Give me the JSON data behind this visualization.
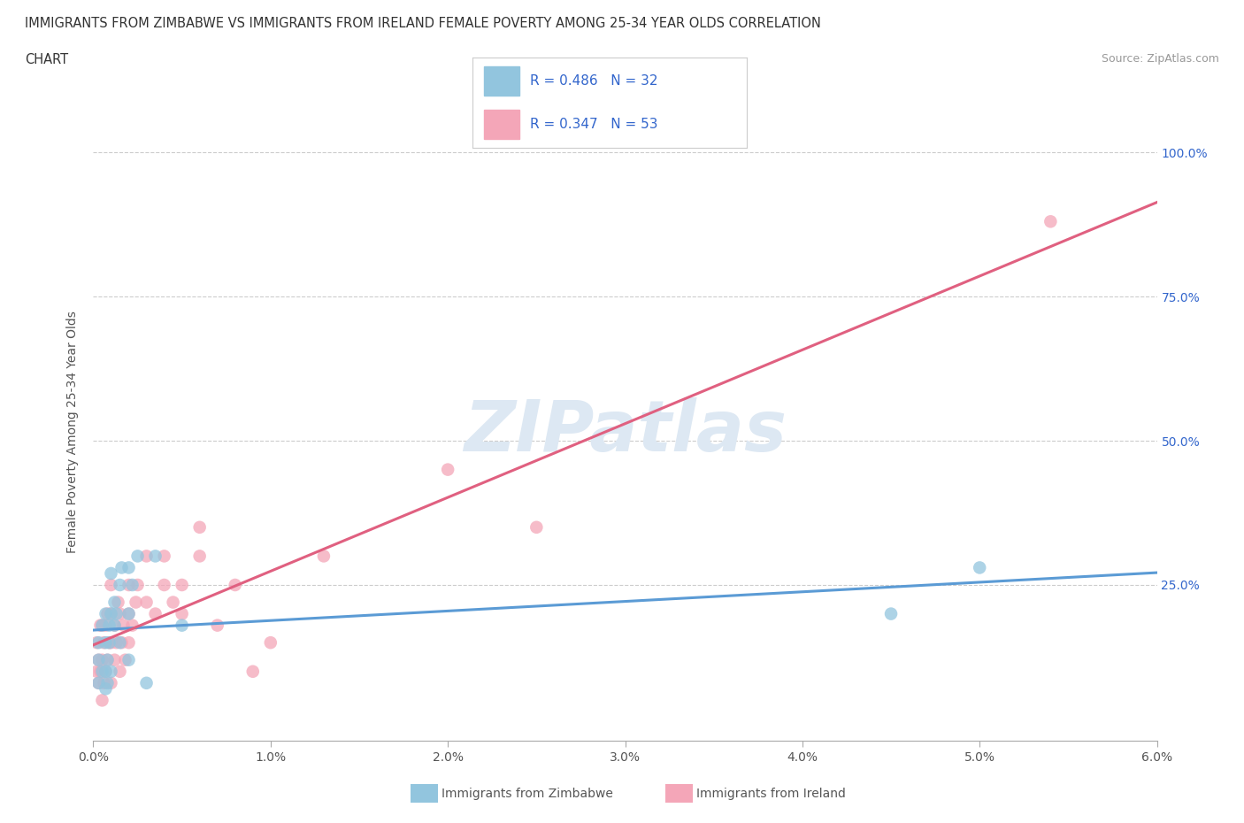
{
  "title_line1": "IMMIGRANTS FROM ZIMBABWE VS IMMIGRANTS FROM IRELAND FEMALE POVERTY AMONG 25-34 YEAR OLDS CORRELATION",
  "title_line2": "CHART",
  "source_text": "Source: ZipAtlas.com",
  "ylabel": "Female Poverty Among 25-34 Year Olds",
  "xlim": [
    0.0,
    0.06
  ],
  "ylim": [
    -0.02,
    1.05
  ],
  "xticks": [
    0.0,
    0.01,
    0.02,
    0.03,
    0.04,
    0.05,
    0.06
  ],
  "xticklabels": [
    "0.0%",
    "1.0%",
    "2.0%",
    "3.0%",
    "4.0%",
    "5.0%",
    "6.0%"
  ],
  "ytick_positions": [
    0.25,
    0.5,
    0.75,
    1.0
  ],
  "yticklabels": [
    "25.0%",
    "50.0%",
    "75.0%",
    "100.0%"
  ],
  "background_color": "#ffffff",
  "plot_bg_color": "#ffffff",
  "watermark_text": "ZIPatlas",
  "watermark_color": "#dde8f3",
  "legend_R1": "0.486",
  "legend_N1": "32",
  "legend_R2": "0.347",
  "legend_N2": "53",
  "color_zimbabwe": "#92c5de",
  "color_ireland": "#f4a6b8",
  "color_line_zim": "#5b9bd5",
  "color_line_ire": "#e06080",
  "color_text_blue": "#3366cc",
  "color_text_dark": "#333333",
  "grid_color": "#cccccc",
  "zimbabwe_x": [
    0.0003,
    0.0003,
    0.0003,
    0.0005,
    0.0005,
    0.0007,
    0.0007,
    0.0007,
    0.0007,
    0.0008,
    0.0008,
    0.0009,
    0.0009,
    0.001,
    0.001,
    0.001,
    0.0012,
    0.0012,
    0.0013,
    0.0015,
    0.0015,
    0.0016,
    0.002,
    0.002,
    0.002,
    0.0022,
    0.0025,
    0.003,
    0.0035,
    0.005,
    0.045,
    0.05
  ],
  "zimbabwe_y": [
    0.12,
    0.08,
    0.15,
    0.1,
    0.18,
    0.07,
    0.1,
    0.15,
    0.2,
    0.08,
    0.12,
    0.15,
    0.18,
    0.1,
    0.2,
    0.27,
    0.18,
    0.22,
    0.2,
    0.15,
    0.25,
    0.28,
    0.12,
    0.2,
    0.28,
    0.25,
    0.3,
    0.08,
    0.3,
    0.18,
    0.2,
    0.28
  ],
  "ireland_x": [
    0.0002,
    0.0002,
    0.0003,
    0.0003,
    0.0004,
    0.0004,
    0.0005,
    0.0005,
    0.0005,
    0.0006,
    0.0006,
    0.0007,
    0.0007,
    0.0008,
    0.0008,
    0.0009,
    0.001,
    0.001,
    0.001,
    0.001,
    0.0012,
    0.0012,
    0.0013,
    0.0014,
    0.0015,
    0.0015,
    0.0016,
    0.0017,
    0.0018,
    0.002,
    0.002,
    0.002,
    0.0022,
    0.0024,
    0.0025,
    0.003,
    0.003,
    0.0035,
    0.004,
    0.004,
    0.0045,
    0.005,
    0.005,
    0.006,
    0.006,
    0.007,
    0.008,
    0.009,
    0.01,
    0.013,
    0.02,
    0.025,
    0.054
  ],
  "ireland_y": [
    0.1,
    0.15,
    0.08,
    0.12,
    0.1,
    0.18,
    0.05,
    0.12,
    0.18,
    0.08,
    0.15,
    0.1,
    0.18,
    0.12,
    0.2,
    0.15,
    0.08,
    0.15,
    0.2,
    0.25,
    0.12,
    0.18,
    0.15,
    0.22,
    0.1,
    0.2,
    0.15,
    0.18,
    0.12,
    0.15,
    0.2,
    0.25,
    0.18,
    0.22,
    0.25,
    0.22,
    0.3,
    0.2,
    0.25,
    0.3,
    0.22,
    0.25,
    0.2,
    0.35,
    0.3,
    0.18,
    0.25,
    0.1,
    0.15,
    0.3,
    0.45,
    0.35,
    0.88
  ]
}
